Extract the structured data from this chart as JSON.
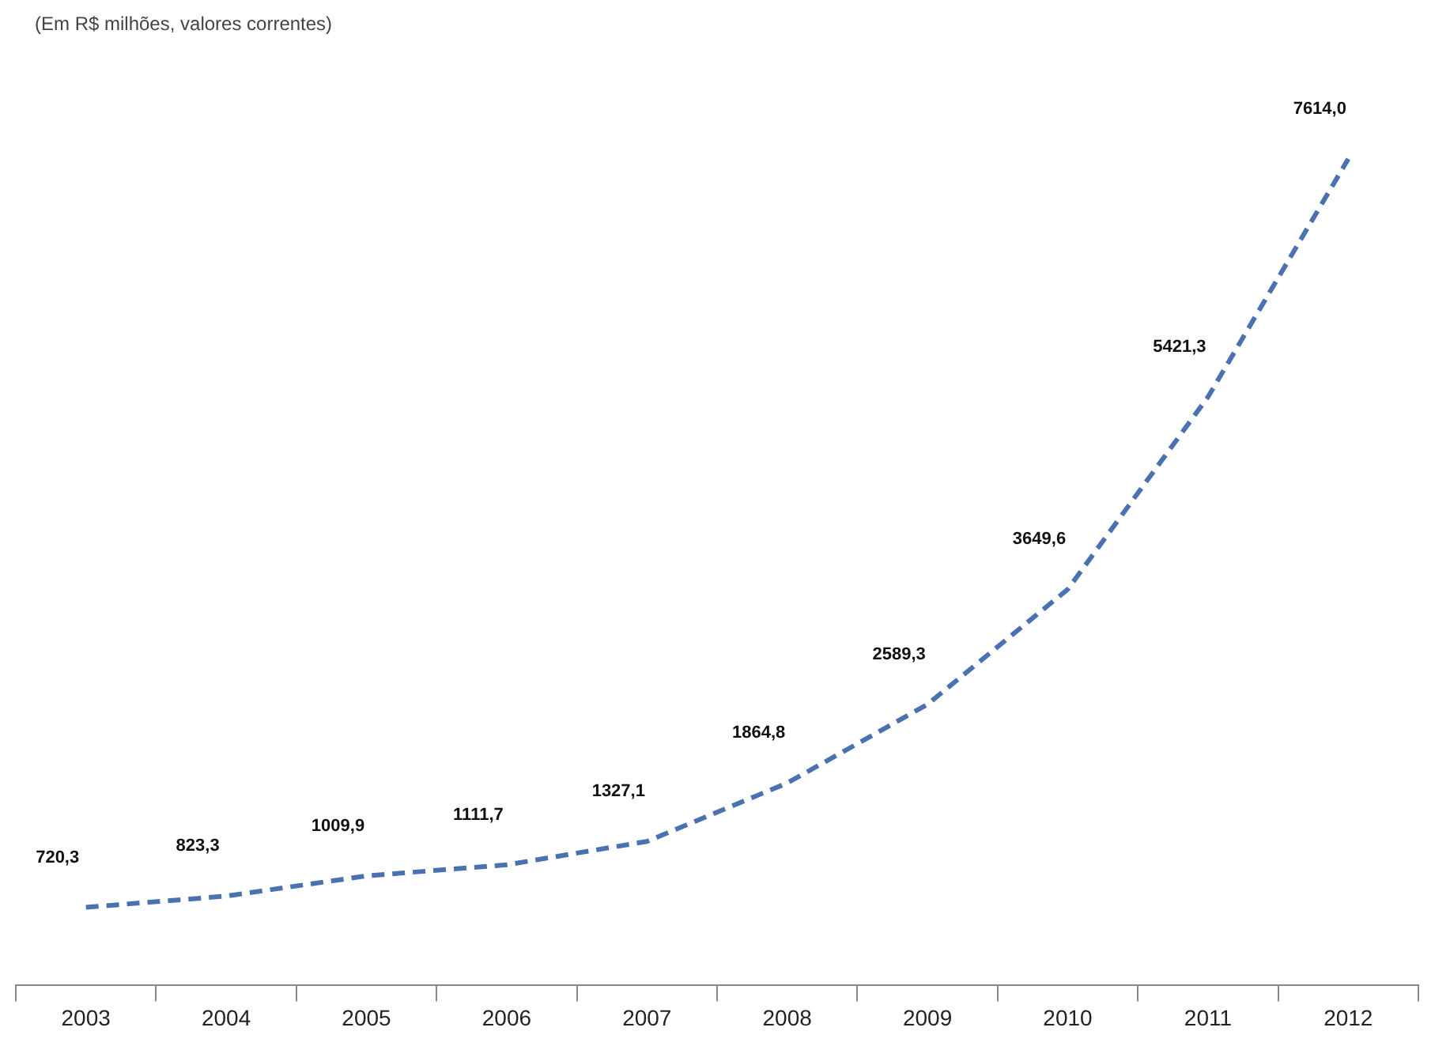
{
  "chart_data": {
    "type": "line",
    "subtitle": "(Em R$ milhões, valores correntes)",
    "categories": [
      "2003",
      "2004",
      "2005",
      "2006",
      "2007",
      "2008",
      "2009",
      "2010",
      "2011",
      "2012"
    ],
    "series": [
      {
        "color": "#4a72b0",
        "values": [
          720.3,
          823.3,
          1009.9,
          1111.7,
          1327.1,
          1864.8,
          2589.3,
          3649.6,
          5421.3,
          7614.0
        ],
        "value_labels": [
          "720,3",
          "823,3",
          "1009,9",
          "1111,7",
          "1327,1",
          "1864,8",
          "2589,3",
          "3649,6",
          "5421,3",
          "7614,0"
        ]
      }
    ],
    "line_style": "dashed",
    "marker": "none",
    "grid": false,
    "legend": false,
    "tick_labels": "x"
  }
}
